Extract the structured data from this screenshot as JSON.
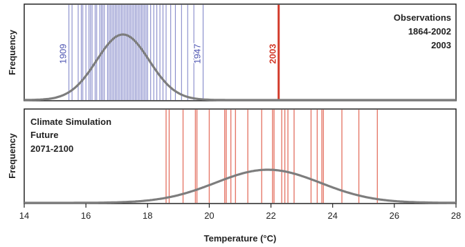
{
  "chart_data": [
    {
      "type": "line",
      "panel": "observations",
      "ylabel": "Frequency",
      "legend": {
        "title": "Observations",
        "period": "1864-2002",
        "highlight": "2003"
      },
      "line_labels": [
        {
          "text": "1909",
          "x": 15.45
        },
        {
          "text": "1947",
          "x": 19.8
        },
        {
          "text": "2003",
          "x": 22.25
        }
      ],
      "observations_1864_2002": [
        15.45,
        15.55,
        15.75,
        15.85,
        15.9,
        16.0,
        16.1,
        16.15,
        16.2,
        16.3,
        16.35,
        16.45,
        16.5,
        16.55,
        16.6,
        16.7,
        16.75,
        16.8,
        16.85,
        16.9,
        16.95,
        17.0,
        17.05,
        17.1,
        17.15,
        17.2,
        17.25,
        17.3,
        17.35,
        17.4,
        17.45,
        17.5,
        17.55,
        17.6,
        17.65,
        17.7,
        17.75,
        17.8,
        17.85,
        17.9,
        17.95,
        18.0,
        18.1,
        18.2,
        18.3,
        18.4,
        18.5,
        18.6,
        18.75,
        18.9,
        19.1,
        19.3,
        19.5,
        19.8
      ],
      "observation_2003": 22.25,
      "distribution": {
        "mean": 17.2,
        "sd": 0.85
      },
      "xlim": [
        14,
        28
      ],
      "grid": false,
      "legend_position": "top-right"
    },
    {
      "type": "line",
      "panel": "simulation",
      "ylabel": "Frequency",
      "xlabel": "Temperature (°C)",
      "legend": {
        "line1": "Climate Simulation",
        "line2": "Future",
        "period": "2071-2100"
      },
      "simulated_years": [
        18.6,
        18.7,
        19.15,
        19.55,
        19.6,
        20.0,
        20.5,
        20.55,
        20.7,
        20.85,
        21.25,
        21.7,
        22.05,
        22.1,
        22.35,
        22.45,
        22.55,
        22.75,
        23.3,
        23.5,
        23.65,
        23.7,
        24.3,
        24.85,
        25.45
      ],
      "distribution": {
        "mean": 21.9,
        "sd": 1.7
      },
      "xlim": [
        14,
        28
      ],
      "xticks": [
        "14",
        "16",
        "18",
        "20",
        "22",
        "24",
        "26",
        "28"
      ],
      "grid": false,
      "legend_position": "top-left"
    }
  ],
  "colors": {
    "observations": "#4b52b0",
    "highlight": "#d23a2a",
    "simulation": "#e0604f",
    "curve": "#7d7d7d",
    "frame": "#222222",
    "legend_title": "#111111"
  }
}
